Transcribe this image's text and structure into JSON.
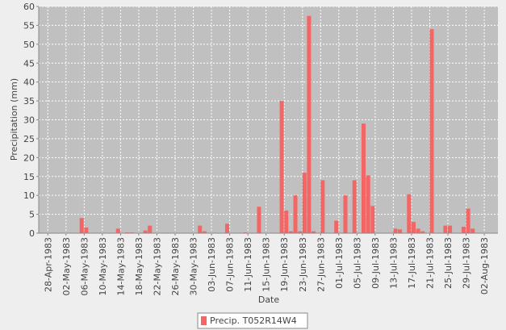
{
  "chart_data": {
    "type": "bar",
    "x_label": "Date",
    "y_label": "Precipitation (mm)",
    "xlim": [
      "1983-04-26",
      "1983-08-05"
    ],
    "xticks": [
      {
        "value": "1983-04-28",
        "label": "28-Apr-1983"
      },
      {
        "value": "1983-05-02",
        "label": "02-May-1983"
      },
      {
        "value": "1983-05-06",
        "label": "06-May-1983"
      },
      {
        "value": "1983-05-10",
        "label": "10-May-1983"
      },
      {
        "value": "1983-05-14",
        "label": "14-May-1983"
      },
      {
        "value": "1983-05-18",
        "label": "18-May-1983"
      },
      {
        "value": "1983-05-22",
        "label": "22-May-1983"
      },
      {
        "value": "1983-05-26",
        "label": "26-May-1983"
      },
      {
        "value": "1983-05-30",
        "label": "30-May-1983"
      },
      {
        "value": "1983-06-03",
        "label": "03-Jun-1983"
      },
      {
        "value": "1983-06-07",
        "label": "07-Jun-1983"
      },
      {
        "value": "1983-06-11",
        "label": "11-Jun-1983"
      },
      {
        "value": "1983-06-15",
        "label": "15-Jun-1983"
      },
      {
        "value": "1983-06-19",
        "label": "19-Jun-1983"
      },
      {
        "value": "1983-06-23",
        "label": "23-Jun-1983"
      },
      {
        "value": "1983-06-27",
        "label": "27-Jun-1983"
      },
      {
        "value": "1983-07-01",
        "label": "01-Jul-1983"
      },
      {
        "value": "1983-07-05",
        "label": "05-Jul-1983"
      },
      {
        "value": "1983-07-09",
        "label": "09-Jul-1983"
      },
      {
        "value": "1983-07-13",
        "label": "13-Jul-1983"
      },
      {
        "value": "1983-07-17",
        "label": "17-Jul-1983"
      },
      {
        "value": "1983-07-21",
        "label": "21-Jul-1983"
      },
      {
        "value": "1983-07-25",
        "label": "25-Jul-1983"
      },
      {
        "value": "1983-07-29",
        "label": "29-Jul-1983"
      },
      {
        "value": "1983-08-02",
        "label": "02-Aug-1983"
      }
    ],
    "ylim": [
      0,
      60
    ],
    "yticks": [
      0,
      5,
      10,
      15,
      20,
      25,
      30,
      35,
      40,
      45,
      50,
      55,
      60
    ],
    "grid": true,
    "x": [
      "1983-05-05",
      "1983-05-06",
      "1983-05-13",
      "1983-05-15",
      "1983-05-16",
      "1983-05-19",
      "1983-05-20",
      "1983-05-31",
      "1983-06-01",
      "1983-06-06",
      "1983-06-10",
      "1983-06-13",
      "1983-06-18",
      "1983-06-19",
      "1983-06-20",
      "1983-06-21",
      "1983-06-22",
      "1983-06-23",
      "1983-06-24",
      "1983-06-25",
      "1983-06-27",
      "1983-06-30",
      "1983-07-02",
      "1983-07-04",
      "1983-07-06",
      "1983-07-07",
      "1983-07-08",
      "1983-07-13",
      "1983-07-14",
      "1983-07-16",
      "1983-07-17",
      "1983-07-18",
      "1983-07-19",
      "1983-07-21",
      "1983-07-24",
      "1983-07-25",
      "1983-07-28",
      "1983-07-29",
      "1983-07-30"
    ],
    "series": [
      {
        "name": "Precip. T052R14W4",
        "color": "#f26666",
        "values": [
          4,
          1.5,
          1.2,
          0.2,
          0.2,
          0.7,
          2,
          2,
          0.5,
          2.5,
          0.2,
          7,
          35,
          6,
          0.5,
          10,
          0.5,
          16,
          57.5,
          0.5,
          14,
          3.3,
          10,
          14,
          29,
          15.3,
          7.2,
          1.2,
          1,
          10.3,
          3,
          1.2,
          0.5,
          54,
          2,
          2,
          1.7,
          6.5,
          1.2
        ]
      }
    ]
  }
}
